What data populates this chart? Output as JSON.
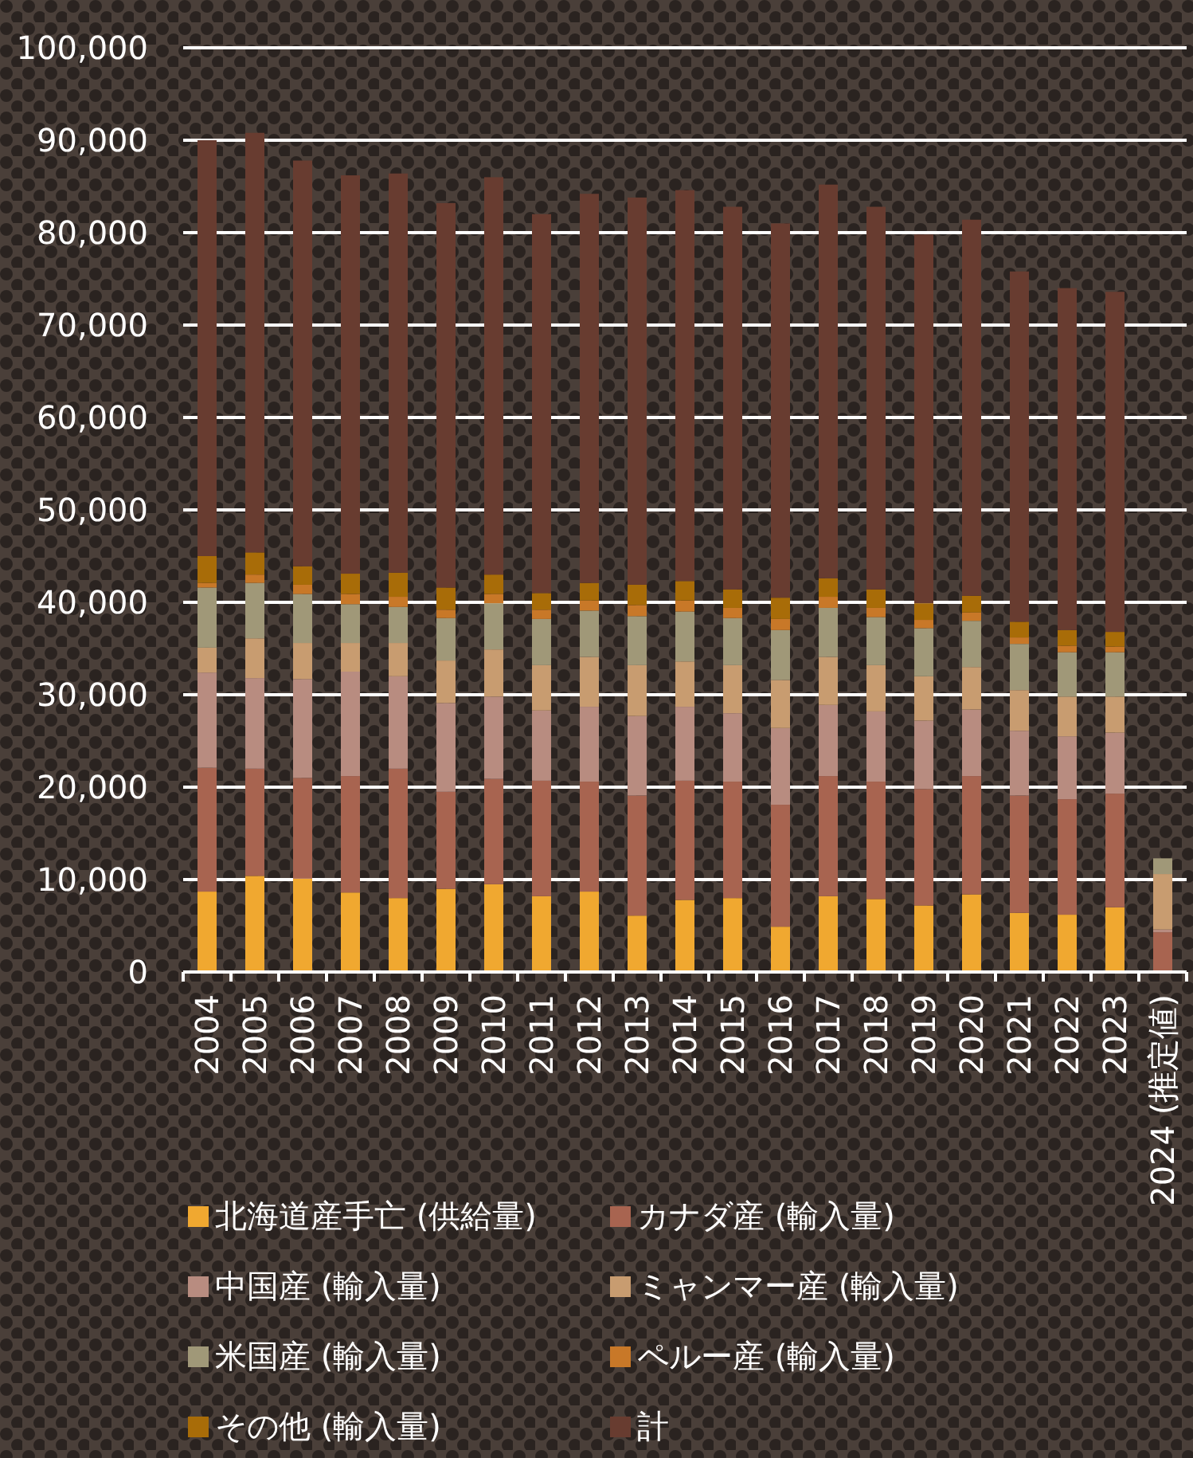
{
  "chart_data": {
    "type": "bar",
    "stacked": true,
    "grid": "y",
    "legend": "bottom",
    "categories": [
      "2004",
      "2005",
      "2006",
      "2007",
      "2008",
      "2009",
      "2010",
      "2011",
      "2012",
      "2013",
      "2014",
      "2015",
      "2016",
      "2017",
      "2018",
      "2019",
      "2020",
      "2021",
      "2022",
      "2023",
      "2024 (推定値)"
    ],
    "ylim": [
      0,
      100000
    ],
    "yticks": [
      {
        "value": 0,
        "label": "0"
      },
      {
        "value": 10000,
        "label": "10,000"
      },
      {
        "value": 20000,
        "label": "20,000"
      },
      {
        "value": 30000,
        "label": "30,000"
      },
      {
        "value": 40000,
        "label": "40,000"
      },
      {
        "value": 50000,
        "label": "50,000"
      },
      {
        "value": 60000,
        "label": "60,000"
      },
      {
        "value": 70000,
        "label": "70,000"
      },
      {
        "value": 80000,
        "label": "80,000"
      },
      {
        "value": 90000,
        "label": "90,000"
      },
      {
        "value": 100000,
        "label": "100,000"
      }
    ],
    "series": [
      {
        "name": "北海道産手亡 (供給量)",
        "color": "#f0a830",
        "values": [
          8700,
          10400,
          10100,
          8600,
          8000,
          9000,
          9500,
          8200,
          8700,
          6100,
          7800,
          8000,
          4900,
          8200,
          7900,
          7200,
          8400,
          6400,
          6200,
          7000,
          null
        ]
      },
      {
        "name": "カナダ産 (輸入量)",
        "color": "#a86450",
        "values": [
          13400,
          11600,
          10900,
          12600,
          14000,
          10500,
          11400,
          12500,
          11900,
          13000,
          12900,
          12600,
          13200,
          13000,
          12700,
          12600,
          12800,
          12700,
          12500,
          12300,
          4300
        ]
      },
      {
        "name": "中国産 (輸入量)",
        "color": "#b88c80",
        "values": [
          10300,
          9800,
          10700,
          11300,
          10000,
          9600,
          8900,
          7600,
          8100,
          8600,
          8000,
          7400,
          8300,
          7700,
          7600,
          7400,
          7200,
          7000,
          6800,
          6600,
          300
        ]
      },
      {
        "name": "ミャンマー産 (輸入量)",
        "color": "#c89c70",
        "values": [
          2700,
          4300,
          3900,
          3100,
          3600,
          4600,
          5100,
          4900,
          5400,
          5500,
          4900,
          5200,
          5200,
          5200,
          5000,
          4800,
          4600,
          4400,
          4300,
          3900,
          6000
        ]
      },
      {
        "name": "米国産 (輸入量)",
        "color": "#a09878",
        "values": [
          6500,
          6000,
          5300,
          4200,
          3900,
          4600,
          5000,
          5000,
          5000,
          5300,
          5400,
          5100,
          5400,
          5300,
          5200,
          5200,
          5000,
          5000,
          4800,
          4800,
          1700
        ]
      },
      {
        "name": "ペルー産 (輸入量)",
        "color": "#c87828",
        "values": [
          500,
          900,
          1000,
          1100,
          1100,
          900,
          1000,
          1000,
          1100,
          1200,
          1200,
          1100,
          1200,
          1200,
          1000,
          900,
          900,
          700,
          700,
          600,
          null
        ]
      },
      {
        "name": "その他 (輸入量)",
        "color": "#a86c08",
        "values": [
          2900,
          2400,
          2000,
          2200,
          2600,
          2400,
          2100,
          1800,
          1900,
          2200,
          2100,
          2000,
          2300,
          2000,
          2000,
          1800,
          1800,
          1700,
          1700,
          1600,
          null
        ]
      },
      {
        "name": "計",
        "color": "#683c30",
        "values": [
          45000,
          45400,
          43900,
          43100,
          43200,
          41600,
          43000,
          41000,
          42100,
          41900,
          42300,
          41400,
          40500,
          42600,
          41400,
          39900,
          40700,
          37900,
          37000,
          36800,
          null
        ]
      }
    ]
  }
}
